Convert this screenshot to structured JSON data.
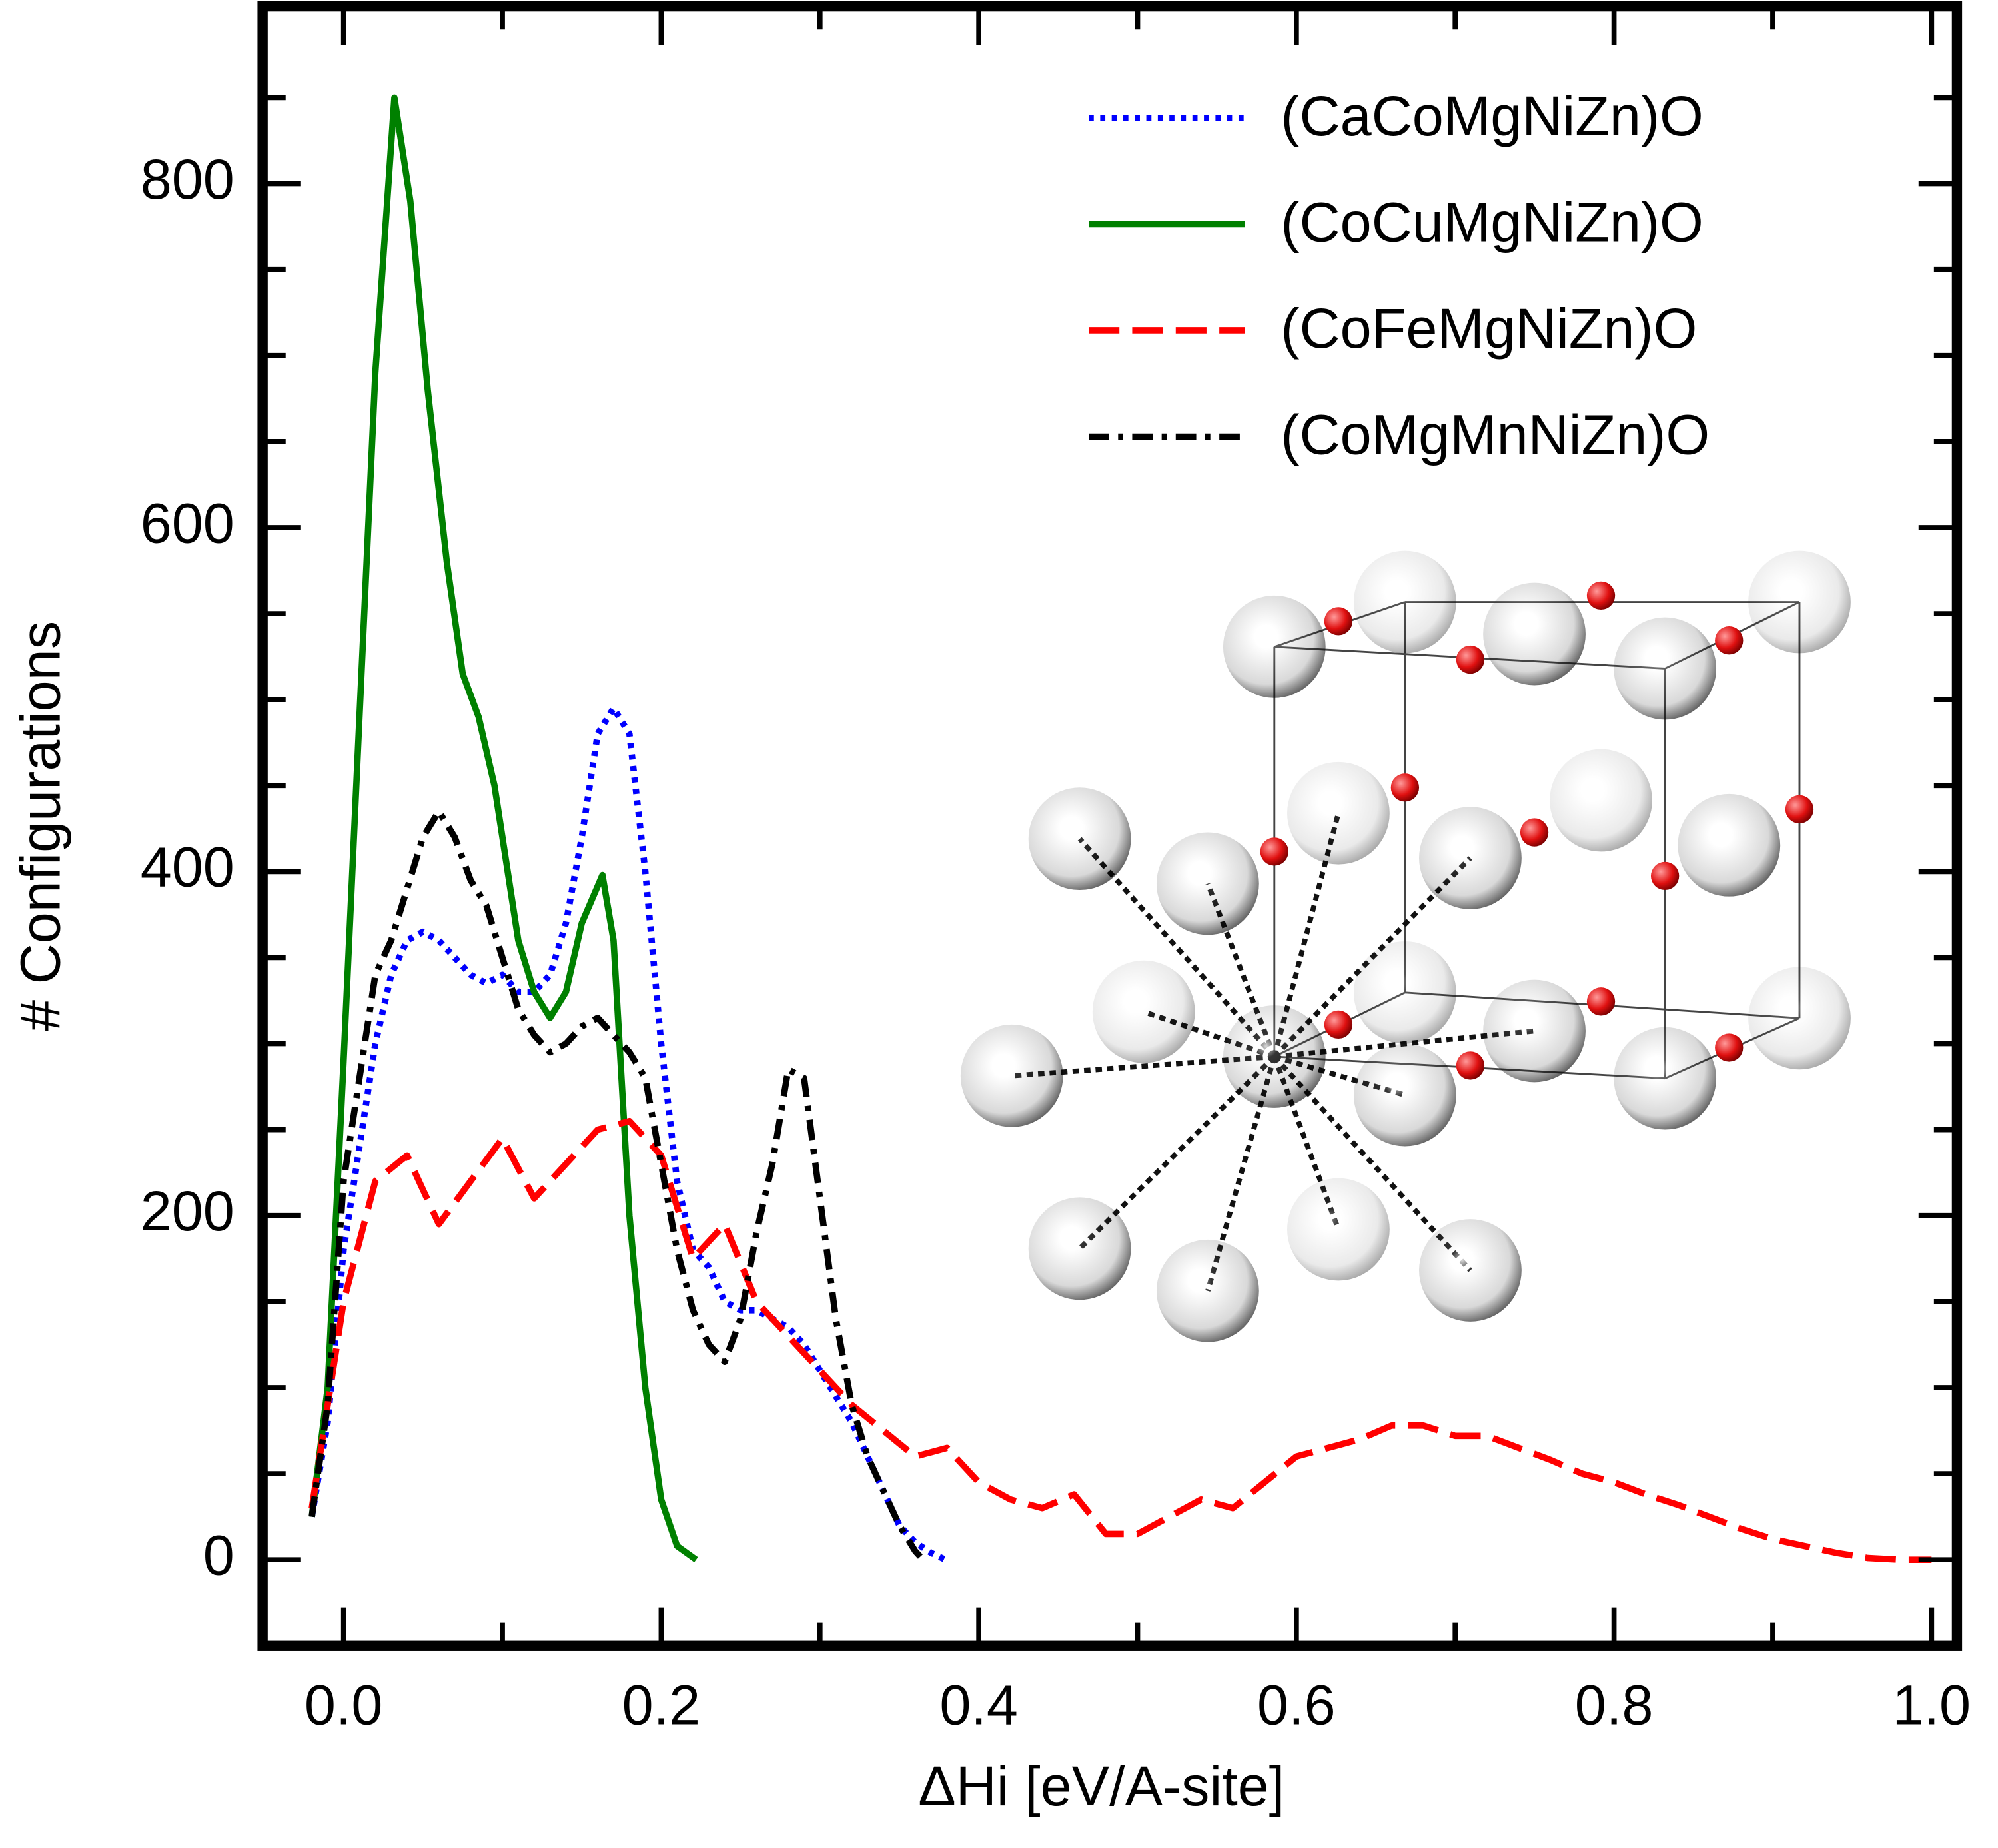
{
  "chart_data": {
    "type": "line",
    "xlabel": "ΔHi [eV/A-site]",
    "ylabel": "# Configurations",
    "xlim": [
      -0.051,
      1.016
    ],
    "ylim": [
      -50,
      903
    ],
    "xticks": [
      {
        "value": 0,
        "label": "0.0"
      },
      0.2,
      0.4,
      0.6,
      0.8,
      {
        "value": 1,
        "label": "1.0"
      }
    ],
    "yticks": [
      0,
      200,
      400,
      600,
      800
    ],
    "xminorticks": [
      0.1,
      0.3,
      0.5,
      0.7,
      0.9
    ],
    "yminorticks": [
      50,
      100,
      150,
      250,
      300,
      350,
      450,
      500,
      550,
      650,
      700,
      750,
      850
    ],
    "legend": "upper right",
    "series": [
      {
        "name": "(CaCoMgNiZn)O",
        "color": "#0000ff",
        "style": "dotted",
        "x": [
          -0.02,
          -0.01,
          0.0,
          0.01,
          0.02,
          0.03,
          0.04,
          0.05,
          0.06,
          0.07,
          0.08,
          0.09,
          0.1,
          0.11,
          0.12,
          0.13,
          0.14,
          0.15,
          0.16,
          0.17,
          0.18,
          0.19,
          0.2,
          0.21,
          0.22,
          0.23,
          0.24,
          0.25,
          0.26,
          0.27,
          0.28,
          0.29,
          0.3,
          0.31,
          0.32,
          0.33,
          0.34,
          0.35,
          0.36,
          0.37,
          0.379
        ],
        "values": [
          25,
          80,
          180,
          240,
          300,
          340,
          360,
          365,
          360,
          350,
          340,
          335,
          340,
          330,
          330,
          340,
          370,
          420,
          480,
          495,
          480,
          400,
          300,
          220,
          180,
          170,
          150,
          145,
          145,
          140,
          135,
          125,
          110,
          95,
          80,
          60,
          40,
          20,
          10,
          4,
          0
        ]
      },
      {
        "name": "(CoCuMgNiZn)O",
        "color": "#008000",
        "style": "solid",
        "x": [
          -0.02,
          -0.01,
          0.0,
          0.02,
          0.032,
          0.042,
          0.053,
          0.065,
          0.075,
          0.085,
          0.095,
          0.11,
          0.12,
          0.13,
          0.14,
          0.15,
          0.163,
          0.17,
          0.18,
          0.19,
          0.2,
          0.21,
          0.222
        ],
        "values": [
          25,
          100,
          290,
          690,
          850,
          790,
          680,
          580,
          515,
          490,
          450,
          360,
          330,
          315,
          330,
          370,
          398,
          360,
          200,
          100,
          35,
          8,
          0
        ]
      },
      {
        "name": "(CoFeMgNiZn)O",
        "color": "#ff0000",
        "style": "dashed",
        "x": [
          -0.02,
          0.0,
          0.02,
          0.04,
          0.06,
          0.08,
          0.1,
          0.12,
          0.14,
          0.16,
          0.18,
          0.2,
          0.22,
          0.24,
          0.26,
          0.28,
          0.3,
          0.32,
          0.34,
          0.36,
          0.38,
          0.4,
          0.42,
          0.44,
          0.46,
          0.48,
          0.5,
          0.52,
          0.54,
          0.56,
          0.58,
          0.6,
          0.62,
          0.64,
          0.66,
          0.68,
          0.7,
          0.72,
          0.74,
          0.76,
          0.78,
          0.8,
          0.82,
          0.84,
          0.86,
          0.88,
          0.9,
          0.92,
          0.94,
          0.96,
          0.98,
          1.0
        ],
        "values": [
          30,
          150,
          220,
          235,
          195,
          220,
          245,
          210,
          230,
          250,
          255,
          235,
          175,
          195,
          150,
          130,
          110,
          90,
          75,
          60,
          65,
          45,
          35,
          30,
          38,
          15,
          15,
          25,
          35,
          30,
          45,
          60,
          65,
          70,
          78,
          78,
          72,
          72,
          65,
          58,
          50,
          45,
          38,
          32,
          25,
          18,
          12,
          8,
          4,
          1,
          0,
          0
        ]
      },
      {
        "name": "(CoMgMnNiZn)O",
        "color": "#000000",
        "style": "dashdot",
        "x": [
          -0.02,
          -0.01,
          0.0,
          0.01,
          0.02,
          0.03,
          0.04,
          0.05,
          0.06,
          0.07,
          0.08,
          0.09,
          0.1,
          0.11,
          0.12,
          0.13,
          0.14,
          0.15,
          0.16,
          0.17,
          0.18,
          0.19,
          0.2,
          0.21,
          0.22,
          0.23,
          0.24,
          0.25,
          0.26,
          0.27,
          0.28,
          0.29,
          0.3,
          0.31,
          0.32,
          0.33,
          0.34,
          0.35,
          0.36,
          0.365
        ],
        "values": [
          25,
          90,
          220,
          280,
          340,
          360,
          390,
          420,
          435,
          420,
          395,
          380,
          350,
          320,
          305,
          295,
          300,
          310,
          315,
          305,
          295,
          280,
          230,
          180,
          145,
          125,
          115,
          140,
          190,
          230,
          285,
          280,
          210,
          140,
          90,
          60,
          40,
          20,
          5,
          0
        ]
      }
    ]
  }
}
